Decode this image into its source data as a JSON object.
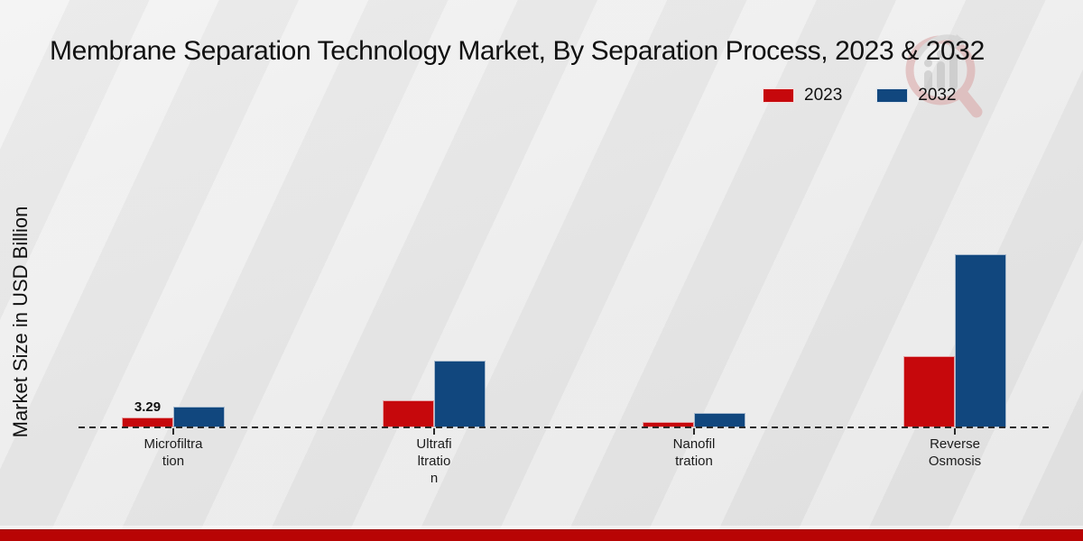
{
  "title": "Membrane Separation Technology Market, By Separation Process, 2023 & 2032",
  "y_axis_label": "Market Size in USD Billion",
  "legend": [
    {
      "label": "2023",
      "color": "#c6080c"
    },
    {
      "label": "2032",
      "color": "#11477e"
    }
  ],
  "colors": {
    "bar_2023": "#c6080c",
    "bar_2032": "#11477e",
    "footer_band": "#b80404",
    "baseline": "#2a2a2a",
    "background": "#e9e9e9",
    "title_text": "#111111"
  },
  "chart_data": {
    "type": "bar",
    "title": "Membrane Separation Technology Market, By Separation Process, 2023 & 2032",
    "ylabel": "Market Size in USD Billion",
    "xlabel": "",
    "categories": [
      "Microfiltration",
      "Ultrafiltration",
      "Nanofiltration",
      "Reverse Osmosis"
    ],
    "category_display_lines": [
      [
        "Microfiltra",
        "tion"
      ],
      [
        "Ultrafi",
        "ltratio",
        "n"
      ],
      [
        "Nanofil",
        "tration"
      ],
      [
        "Reverse",
        "Osmosis"
      ]
    ],
    "series": [
      {
        "name": "2023",
        "color": "#c6080c",
        "values": [
          3.29,
          9.1,
          1.9,
          24.0
        ]
      },
      {
        "name": "2032",
        "color": "#11477e",
        "values": [
          7.0,
          22.4,
          4.9,
          58.3
        ]
      }
    ],
    "data_labels": [
      {
        "series": "2023",
        "category_index": 0,
        "text": "3.29"
      }
    ],
    "grid": false,
    "axis_ticks_visible": false,
    "baseline_style": "dashed",
    "legend_position": "top-right"
  },
  "watermark": {
    "icon": "magnifier-bar-chart-logo"
  }
}
